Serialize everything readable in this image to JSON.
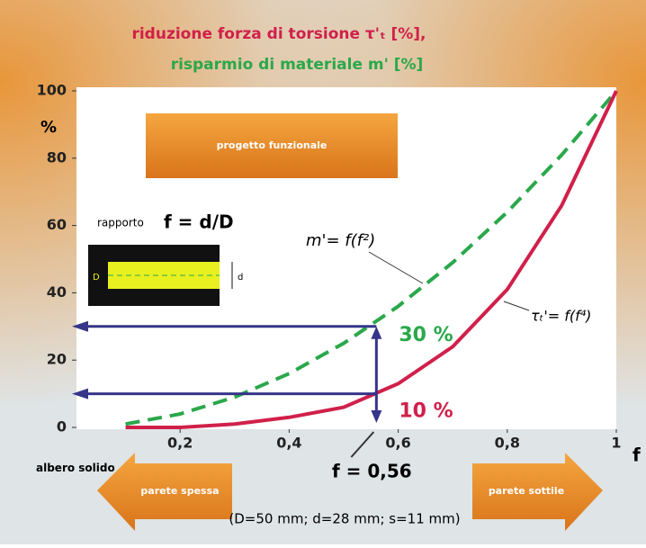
{
  "chart_data": {
    "type": "line",
    "title": "riduzione forza di torsione τ'ₜ [%],",
    "subtitle": "risparmio di materiale m' [%]",
    "y_label": "%",
    "x_label": "f",
    "x": [
      0.1,
      0.2,
      0.3,
      0.4,
      0.5,
      0.6,
      0.7,
      0.8,
      0.9,
      1
    ],
    "series": [
      {
        "name": "m'= f(f²)",
        "color": "#2aa84a",
        "dashed": true,
        "values": [
          1,
          4,
          9,
          16,
          25,
          36,
          49,
          64,
          81,
          100
        ]
      },
      {
        "name": "τₜ'= f(f⁴)",
        "color": "#d0204a",
        "dashed": false,
        "values": [
          0,
          0,
          1,
          3,
          6,
          13,
          24,
          41,
          66,
          100
        ]
      }
    ],
    "xlim": [
      0,
      1
    ],
    "ylim": [
      0,
      100
    ],
    "xticks": [
      {
        "value": 0.2,
        "label": "0,2"
      },
      {
        "value": 0.4,
        "label": "0,4"
      },
      {
        "value": 0.6,
        "label": "0,6"
      },
      {
        "value": 0.8,
        "label": "0,8"
      },
      1
    ],
    "yticks": [
      0,
      20,
      40,
      60,
      80,
      100
    ],
    "reference": {
      "x": 0.56,
      "x_label": "f = 0,56",
      "values": [
        30,
        10
      ],
      "labels": [
        "30 %",
        "10 %"
      ]
    },
    "annotations": {
      "box": "progetto funzionale",
      "ratio_word": "rapporto",
      "ratio": "f = d/D",
      "D": "D",
      "d": "d",
      "solid": "albero solido",
      "thick": "parete spessa",
      "thin": "parete sottile",
      "note": "(D=50 mm; d=28 mm; s=11 mm)"
    }
  }
}
